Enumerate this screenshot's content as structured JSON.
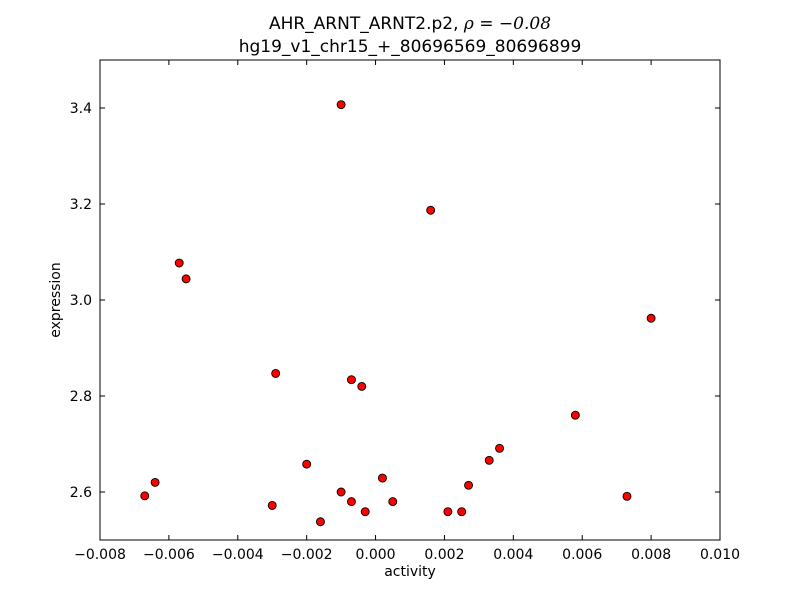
{
  "chart_data": {
    "type": "scatter",
    "title_line1_prefix": "AHR_ARNT_ARNT2.p2, ",
    "title_line1_math": "ρ = −0.08",
    "title_line2": "hg19_v1_chr15_+_80696569_80696899",
    "xlabel": "activity",
    "ylabel": "expression",
    "xlim": [
      -0.008,
      0.01
    ],
    "ylim": [
      2.5,
      3.5
    ],
    "xticks": [
      -0.008,
      -0.006,
      -0.004,
      -0.002,
      0.0,
      0.002,
      0.004,
      0.006,
      0.008,
      0.01
    ],
    "xtick_labels": [
      "−0.008",
      "−0.006",
      "−0.004",
      "−0.002",
      "0.000",
      "0.002",
      "0.004",
      "0.006",
      "0.008",
      "0.010"
    ],
    "yticks": [
      2.6,
      2.8,
      3.0,
      3.2,
      3.4
    ],
    "ytick_labels": [
      "2.6",
      "2.8",
      "3.0",
      "3.2",
      "3.4"
    ],
    "grid": false,
    "marker_color": "#ff0000",
    "marker_edge_color": "#000000",
    "points": [
      {
        "x": -0.0067,
        "y": 2.592
      },
      {
        "x": -0.0064,
        "y": 2.62
      },
      {
        "x": -0.0057,
        "y": 3.077
      },
      {
        "x": -0.0055,
        "y": 3.044
      },
      {
        "x": -0.003,
        "y": 2.572
      },
      {
        "x": -0.0029,
        "y": 2.847
      },
      {
        "x": -0.002,
        "y": 2.658
      },
      {
        "x": -0.0016,
        "y": 2.538
      },
      {
        "x": -0.001,
        "y": 3.407
      },
      {
        "x": -0.001,
        "y": 2.6
      },
      {
        "x": -0.0007,
        "y": 2.834
      },
      {
        "x": -0.0007,
        "y": 2.58
      },
      {
        "x": -0.0004,
        "y": 2.82
      },
      {
        "x": -0.0003,
        "y": 2.559
      },
      {
        "x": 0.0002,
        "y": 2.629
      },
      {
        "x": 0.0005,
        "y": 2.58
      },
      {
        "x": 0.0016,
        "y": 3.187
      },
      {
        "x": 0.0021,
        "y": 2.559
      },
      {
        "x": 0.0025,
        "y": 2.559
      },
      {
        "x": 0.0027,
        "y": 2.614
      },
      {
        "x": 0.0033,
        "y": 2.666
      },
      {
        "x": 0.0036,
        "y": 2.691
      },
      {
        "x": 0.0058,
        "y": 2.76
      },
      {
        "x": 0.0073,
        "y": 2.591
      },
      {
        "x": 0.008,
        "y": 2.962
      }
    ]
  }
}
